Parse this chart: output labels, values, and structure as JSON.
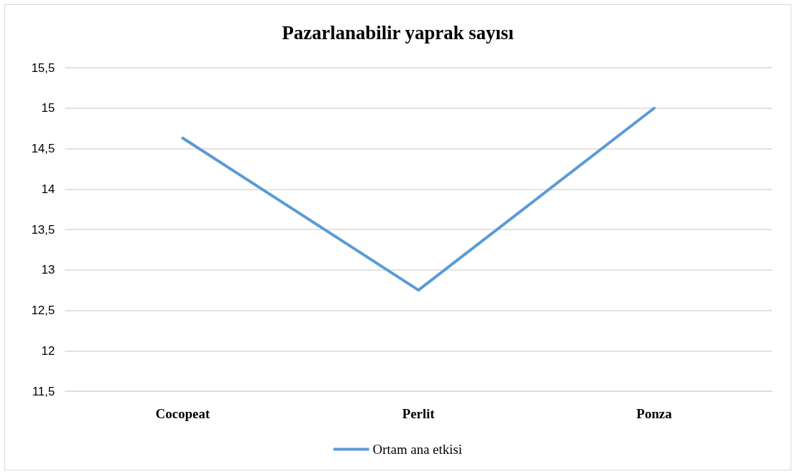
{
  "chart_data": {
    "type": "line",
    "title": "Pazarlanabilir yaprak sayısı",
    "categories": [
      "Cocopeat",
      "Perlit",
      "Ponza"
    ],
    "series": [
      {
        "name": "Ortam ana etkisi",
        "color": "#5b9bd5",
        "values": [
          14.63,
          12.75,
          15.0
        ]
      }
    ],
    "ylim": [
      11.5,
      15.5
    ],
    "yticks": [
      {
        "value": 11.5,
        "label": "11,5"
      },
      12,
      {
        "value": 12.5,
        "label": "12,5"
      },
      13,
      {
        "value": 13.5,
        "label": "13,5"
      },
      14,
      {
        "value": 14.5,
        "label": "14,5"
      },
      15,
      {
        "value": 15.5,
        "label": "15,5"
      }
    ],
    "grid": "y",
    "legend": "bottom",
    "marker": "none",
    "line_style": "solid"
  }
}
